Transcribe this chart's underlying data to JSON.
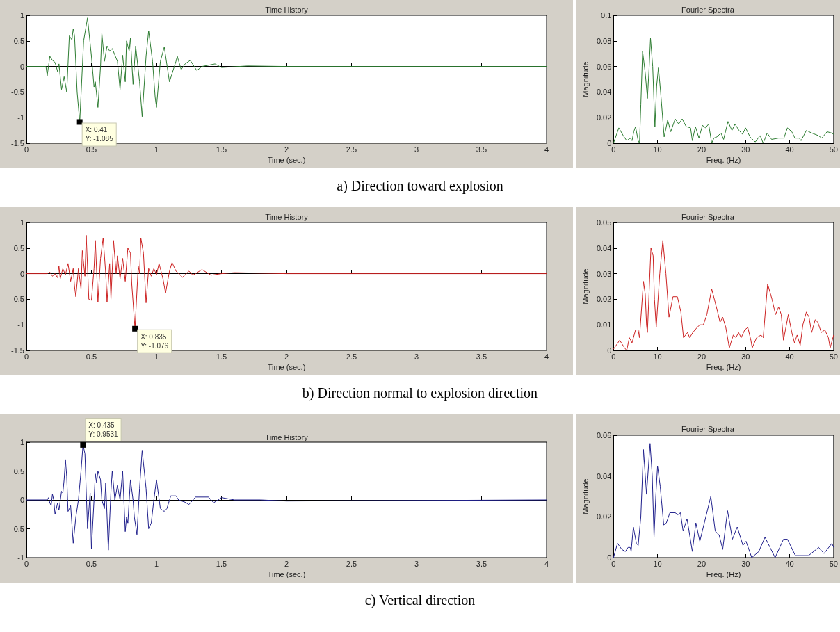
{
  "chart_data": [
    {
      "type": "line",
      "title": "Time History",
      "xlabel": "Time (sec.)",
      "xlim": [
        0,
        4
      ],
      "xticks": [
        0,
        0.5,
        1,
        1.5,
        2,
        2.5,
        3,
        3.5,
        4
      ],
      "ylim": [
        -1.5,
        1
      ],
      "yticks": [
        -1.5,
        -1,
        -0.5,
        0,
        0.5,
        1
      ],
      "x": [
        0,
        0.15,
        0.16,
        0.18,
        0.2,
        0.22,
        0.24,
        0.25,
        0.27,
        0.29,
        0.31,
        0.33,
        0.35,
        0.36,
        0.37,
        0.39,
        0.41,
        0.44,
        0.47,
        0.5,
        0.52,
        0.53,
        0.55,
        0.57,
        0.58,
        0.6,
        0.62,
        0.64,
        0.66,
        0.7,
        0.72,
        0.74,
        0.76,
        0.77,
        0.79,
        0.8,
        0.82,
        0.84,
        0.87,
        0.89,
        0.92,
        0.94,
        0.97,
        0.99,
        1.0,
        1.03,
        1.06,
        1.1,
        1.15,
        1.16,
        1.19,
        1.22,
        1.26,
        1.31,
        1.35,
        1.45,
        1.5,
        1.7,
        2.0,
        4.0
      ],
      "series": [
        {
          "color": "#2e7d32",
          "values": [
            0,
            0,
            -0.18,
            0.2,
            0.12,
            0.08,
            -0.1,
            0.05,
            -0.45,
            -0.2,
            -0.5,
            0.6,
            0.52,
            0.74,
            0.6,
            -0.5,
            -1.085,
            0.5,
            0.95,
            0.2,
            -0.4,
            -0.3,
            -0.8,
            0.0,
            0.65,
            0.1,
            0.4,
            0.3,
            0.35,
            0.1,
            -0.45,
            0.22,
            -0.3,
            0.5,
            0.3,
            0.55,
            -0.35,
            0.4,
            -0.3,
            -0.98,
            0.2,
            0.7,
            0.1,
            -0.6,
            -0.8,
            0.1,
            0.38,
            -0.3,
            0.1,
            0.2,
            -0.06,
            0.05,
            0.12,
            -0.08,
            0.0,
            0.05,
            -0.02,
            0.01,
            0.0,
            0.0
          ]
        }
      ],
      "annotations": [
        {
          "text": "X: 0.41\nY: -1.085",
          "x": 0.41,
          "y": -1.085
        },
        "a)  Direction toward explosion"
      ]
    },
    {
      "type": "line",
      "title": "Fourier Spectra",
      "xlabel": "Freq. (Hz)",
      "ylabel": "Magnitude",
      "xlim": [
        0,
        50
      ],
      "xticks": [
        0,
        10,
        20,
        30,
        40,
        50
      ],
      "ylim": [
        0,
        0.1
      ],
      "yticks": [
        0,
        0.02,
        0.04,
        0.06,
        0.08,
        0.1
      ],
      "x": [
        0,
        1.2,
        2.2,
        3,
        3.8,
        4.2,
        4.6,
        5,
        5.6,
        5.9,
        6.2,
        6.6,
        7.2,
        7.7,
        8.1,
        8.4,
        8.9,
        9.4,
        9.8,
        10.2,
        10.7,
        11.5,
        12.3,
        13,
        14,
        14.8,
        15.6,
        16.5,
        17.5,
        17.9,
        18.6,
        19.4,
        20.2,
        20.9,
        21.6,
        22.3,
        22.8,
        23.5,
        24.4,
        25,
        26,
        26.9,
        27.6,
        28.5,
        29.3,
        30,
        31,
        32.2,
        33.3,
        34,
        34.9,
        35.9,
        37.5,
        38.7,
        39.5,
        40.5,
        41.2,
        42.2,
        42.6,
        43.8,
        45,
        46.5,
        47.3,
        48.5,
        49.5,
        50
      ],
      "series": [
        {
          "color": "#2e7d32",
          "values": [
            0,
            0.012,
            0.006,
            0.002,
            0.004,
            0.002,
            0.009,
            0.013,
            0.002,
            0,
            0.03,
            0.072,
            0.055,
            0.035,
            0.06,
            0.082,
            0.06,
            0.013,
            0.045,
            0.059,
            0.04,
            0.005,
            0.018,
            0.009,
            0.019,
            0.015,
            0.019,
            0.013,
            0.012,
            0.002,
            0.013,
            0.004,
            0.014,
            0.012,
            0.015,
            0,
            0.004,
            0.005,
            0.008,
            0.003,
            0.017,
            0.01,
            0.015,
            0.01,
            0.007,
            0.012,
            0.005,
            0.001,
            0.006,
            0,
            0.008,
            0.003,
            0.004,
            0.004,
            0.012,
            0.009,
            0.004,
            0.004,
            0.002,
            0.01,
            0.008,
            0.006,
            0.004,
            0.009,
            0.008,
            0.007
          ]
        }
      ]
    },
    {
      "type": "line",
      "title": "Time History",
      "xlabel": "Time (sec.)",
      "xlim": [
        0,
        4
      ],
      "xticks": [
        0,
        0.5,
        1,
        1.5,
        2,
        2.5,
        3,
        3.5,
        4
      ],
      "ylim": [
        -1.5,
        1
      ],
      "yticks": [
        -1.5,
        -1,
        -0.5,
        0,
        0.5,
        1
      ],
      "x": [
        0,
        0.16,
        0.18,
        0.2,
        0.22,
        0.24,
        0.25,
        0.26,
        0.28,
        0.3,
        0.32,
        0.34,
        0.36,
        0.37,
        0.38,
        0.4,
        0.42,
        0.43,
        0.45,
        0.46,
        0.48,
        0.5,
        0.52,
        0.53,
        0.55,
        0.57,
        0.59,
        0.61,
        0.62,
        0.64,
        0.65,
        0.67,
        0.69,
        0.7,
        0.72,
        0.74,
        0.76,
        0.78,
        0.8,
        0.81,
        0.835,
        0.86,
        0.87,
        0.88,
        0.9,
        0.92,
        0.94,
        0.96,
        0.98,
        1.0,
        1.02,
        1.05,
        1.07,
        1.1,
        1.12,
        1.15,
        1.2,
        1.25,
        1.28,
        1.35,
        1.42,
        1.5,
        1.6,
        2.0,
        4.0
      ],
      "series": [
        {
          "color": "#cc2222",
          "values": [
            0,
            0,
            0.03,
            -0.05,
            0.0,
            -0.08,
            0.15,
            -0.1,
            0.1,
            -0.02,
            0.2,
            -0.15,
            0.1,
            -0.25,
            -0.45,
            0.1,
            -0.3,
            0.45,
            -0.05,
            0.75,
            -0.5,
            -0.52,
            0.1,
            0.65,
            -0.55,
            0.3,
            0.7,
            0.0,
            -0.55,
            0.2,
            -0.5,
            0.65,
            0.0,
            0.35,
            -0.1,
            0.3,
            -0.15,
            0.5,
            0.4,
            -0.2,
            -1.076,
            0.15,
            0.0,
            0.7,
            0.4,
            -0.57,
            0.1,
            -0.05,
            0.1,
            -0.02,
            0.2,
            -0.1,
            -0.38,
            0.05,
            0.22,
            0.05,
            -0.07,
            0.05,
            -0.03,
            0.08,
            -0.03,
            0.0,
            0.02,
            0.0,
            0.0
          ]
        }
      ],
      "annotations": [
        {
          "text": "X: 0.835\nY: -1.076",
          "x": 0.835,
          "y": -1.076
        },
        "b)  Direction normal to explosion direction"
      ]
    },
    {
      "type": "line",
      "title": "Fourier Spectra",
      "xlabel": "Freq. (Hz)",
      "ylabel": "Magnitude",
      "xlim": [
        0,
        50
      ],
      "xticks": [
        0,
        10,
        20,
        30,
        40,
        50
      ],
      "ylim": [
        0,
        0.05
      ],
      "yticks": [
        0,
        0.01,
        0.02,
        0.03,
        0.04,
        0.05
      ],
      "x": [
        0,
        1.4,
        2.5,
        3,
        3.6,
        4.2,
        5,
        5.6,
        5.9,
        6.8,
        7.2,
        7.5,
        7.7,
        8.5,
        9,
        9.3,
        9.7,
        10.5,
        11.2,
        11.9,
        12.6,
        13.5,
        14.5,
        15.3,
        15.9,
        16.8,
        17.3,
        18,
        19,
        19.6,
        20.4,
        21.2,
        22.3,
        23.5,
        24.2,
        24.8,
        25.5,
        26.3,
        27.2,
        27.8,
        28.4,
        29,
        29.8,
        30.5,
        31.2,
        31.5,
        32.5,
        33.5,
        34,
        35,
        36,
        36.8,
        37.5,
        38.1,
        38.6,
        39.7,
        40.5,
        41.1,
        41.7,
        42.4,
        43,
        43.8,
        44.4,
        45,
        45.8,
        46.4,
        47.2,
        48,
        48.8,
        49.2,
        50
      ],
      "series": [
        {
          "color": "#cc2222",
          "values": [
            0.0005,
            0.004,
            0.001,
            0,
            0.005,
            0.003,
            0.008,
            0.008,
            0.005,
            0.027,
            0.022,
            0.01,
            0.007,
            0.04,
            0.037,
            0.02,
            0.009,
            0.03,
            0.043,
            0.03,
            0.013,
            0.021,
            0.021,
            0.015,
            0.005,
            0.007,
            0.005,
            0.007,
            0.009,
            0.01,
            0.01,
            0.014,
            0.024,
            0.016,
            0.011,
            0.013,
            0.009,
            0.001,
            0.006,
            0.005,
            0.007,
            0.005,
            0.008,
            0.009,
            0.004,
            0.001,
            0.005,
            0.006,
            0.005,
            0.026,
            0.02,
            0.014,
            0.017,
            0.014,
            0.004,
            0.014,
            0.007,
            0.003,
            0.006,
            0.002,
            0.01,
            0.015,
            0.013,
            0.007,
            0.012,
            0.011,
            0.007,
            0.008,
            0.005,
            0.001,
            0.006
          ]
        }
      ]
    },
    {
      "type": "line",
      "title": "Time History",
      "xlabel": "Time (sec.)",
      "xlim": [
        0,
        4
      ],
      "xticks": [
        0,
        0.5,
        1,
        1.5,
        2,
        2.5,
        3,
        3.5,
        4
      ],
      "ylim": [
        -1,
        1
      ],
      "yticks": [
        -1,
        -0.5,
        0,
        0.5,
        1
      ],
      "x": [
        0,
        0.16,
        0.17,
        0.18,
        0.19,
        0.2,
        0.21,
        0.22,
        0.24,
        0.25,
        0.27,
        0.28,
        0.29,
        0.3,
        0.31,
        0.32,
        0.33,
        0.34,
        0.36,
        0.38,
        0.4,
        0.42,
        0.435,
        0.45,
        0.47,
        0.49,
        0.5,
        0.52,
        0.53,
        0.54,
        0.55,
        0.57,
        0.58,
        0.6,
        0.61,
        0.63,
        0.65,
        0.66,
        0.68,
        0.7,
        0.72,
        0.74,
        0.76,
        0.77,
        0.78,
        0.8,
        0.82,
        0.83,
        0.85,
        0.87,
        0.89,
        0.92,
        0.94,
        0.96,
        0.98,
        1.0,
        1.03,
        1.06,
        1.08,
        1.11,
        1.15,
        1.17,
        1.22,
        1.25,
        1.3,
        1.4,
        1.44,
        1.5,
        1.6,
        1.8,
        2.0,
        4.0
      ],
      "series": [
        {
          "color": "#20208c",
          "values": [
            0,
            0,
            0.04,
            -0.05,
            -0.1,
            0.1,
            0.0,
            -0.25,
            -0.05,
            -0.18,
            0.15,
            0.12,
            0.35,
            0.7,
            0.4,
            -0.2,
            -0.15,
            -0.1,
            -0.75,
            -0.3,
            0.0,
            0.5,
            0.9531,
            0.8,
            -0.5,
            0.12,
            -0.85,
            0.0,
            0.45,
            0.3,
            0.5,
            0.35,
            0.0,
            -0.15,
            0.3,
            -0.87,
            0.15,
            0.5,
            0.0,
            0.25,
            0.0,
            0.5,
            -0.55,
            -0.3,
            -0.4,
            0.35,
            0.0,
            -0.3,
            -0.6,
            0.2,
            0.86,
            0.2,
            -0.5,
            -0.4,
            0.0,
            0.35,
            -0.15,
            -0.2,
            -0.15,
            0.07,
            0.07,
            0.0,
            -0.04,
            -0.08,
            0.05,
            0.05,
            -0.05,
            0.04,
            0.0,
            0.0,
            -0.02,
            0.0
          ]
        }
      ],
      "annotations": [
        {
          "text": "X: 0.435\nY: 0.9531",
          "x": 0.435,
          "y": 0.9531
        },
        "c)  Vertical direction"
      ]
    },
    {
      "type": "line",
      "title": "Fourier Spectra",
      "xlabel": "Freq. (Hz)",
      "ylabel": "Magnitude",
      "xlim": [
        0,
        50
      ],
      "xticks": [
        0,
        10,
        20,
        30,
        40,
        50
      ],
      "ylim": [
        0,
        0.06
      ],
      "yticks": [
        0,
        0.02,
        0.04,
        0.06
      ],
      "x": [
        0,
        0.9,
        1.9,
        2.7,
        3.3,
        3.8,
        4,
        4.5,
        5.2,
        5.6,
        6.2,
        6.8,
        7.5,
        8.3,
        8.8,
        9.2,
        9.6,
        10,
        10.6,
        11.4,
        12,
        12.8,
        14,
        14.6,
        15.2,
        15.8,
        16.7,
        17.9,
        18.7,
        19.6,
        22.1,
        23.1,
        24,
        24.8,
        25.9,
        27,
        28.1,
        29.4,
        30.1,
        31.4,
        33,
        34.4,
        36.7,
        38.6,
        39.5,
        41.3,
        44.3,
        46.6,
        47.8,
        49.6,
        50
      ],
      "series": [
        {
          "color": "#20208c",
          "values": [
            0,
            0.007,
            0.004,
            0.003,
            0.005,
            0.005,
            0.003,
            0.015,
            0.007,
            0.006,
            0.02,
            0.053,
            0.031,
            0.056,
            0.04,
            0.01,
            0.03,
            0.045,
            0.035,
            0.016,
            0.017,
            0.022,
            0.022,
            0.021,
            0.022,
            0.013,
            0.019,
            0.003,
            0.017,
            0.008,
            0.03,
            0.013,
            0.011,
            0.004,
            0.023,
            0.009,
            0.015,
            0.006,
            0.008,
            0,
            0.003,
            0.01,
            0,
            0.009,
            0.009,
            0.001,
            0.001,
            0.005,
            0.002,
            0.007,
            0.005
          ]
        }
      ]
    }
  ]
}
